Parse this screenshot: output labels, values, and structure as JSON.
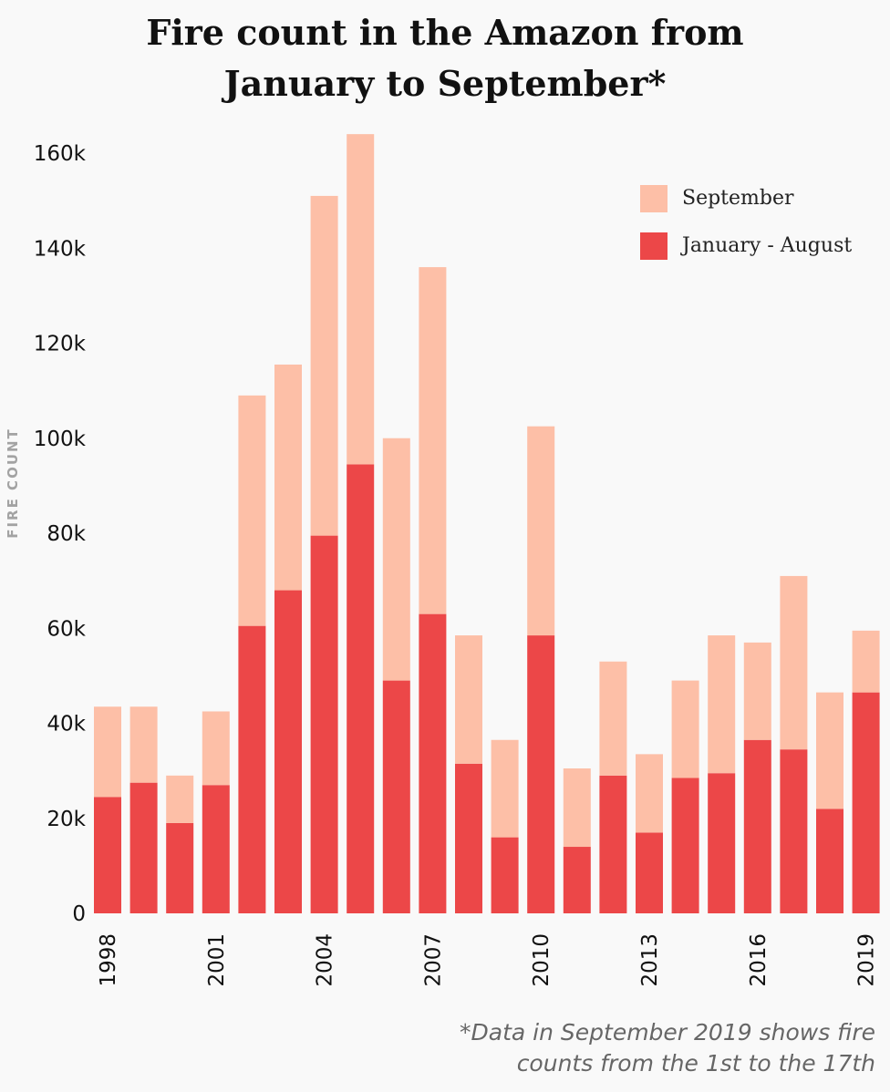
{
  "title_lines": [
    "Fire count in the Amazon from",
    "January to September*"
  ],
  "footnote_lines": [
    "*Data in September 2019 shows fire",
    "counts from the 1st to the 17th"
  ],
  "colors": {
    "september": "#fdbfa7",
    "jan_aug": "#ec4748",
    "background": "#f9f9f9"
  },
  "chart_data": {
    "type": "bar",
    "stacked": true,
    "ylabel": "FIRE COUNT",
    "ylim": [
      0,
      165000
    ],
    "y_ticks": [
      0,
      20000,
      40000,
      60000,
      80000,
      100000,
      120000,
      140000,
      160000
    ],
    "y_tick_labels": [
      "0",
      "20k",
      "40k",
      "60k",
      "80k",
      "100k",
      "120k",
      "140k",
      "160k"
    ],
    "categories": [
      "1998",
      "1999",
      "2000",
      "2001",
      "2002",
      "2003",
      "2004",
      "2005",
      "2006",
      "2007",
      "2008",
      "2009",
      "2010",
      "2011",
      "2012",
      "2013",
      "2014",
      "2015",
      "2016",
      "2017",
      "2018",
      "2019"
    ],
    "x_tick_labels": [
      "1998",
      "",
      "",
      "2001",
      "",
      "",
      "2004",
      "",
      "",
      "2007",
      "",
      "",
      "2010",
      "",
      "",
      "2013",
      "",
      "",
      "2016",
      "",
      "",
      "2019"
    ],
    "legend_position": "top-right",
    "series": [
      {
        "name": "January - August",
        "color": "#ec4748",
        "values": [
          24500,
          27500,
          19000,
          27000,
          60500,
          68000,
          79500,
          94500,
          49000,
          63000,
          31500,
          16000,
          58500,
          14000,
          29000,
          17000,
          28500,
          29500,
          36500,
          34500,
          22000,
          46500
        ]
      },
      {
        "name": "September",
        "color": "#fdbfa7",
        "values": [
          19000,
          16000,
          10000,
          15500,
          48500,
          47500,
          71500,
          69500,
          51000,
          73000,
          27000,
          20500,
          44000,
          16500,
          24000,
          16500,
          20500,
          29000,
          20500,
          36500,
          24500,
          13000
        ]
      }
    ]
  }
}
